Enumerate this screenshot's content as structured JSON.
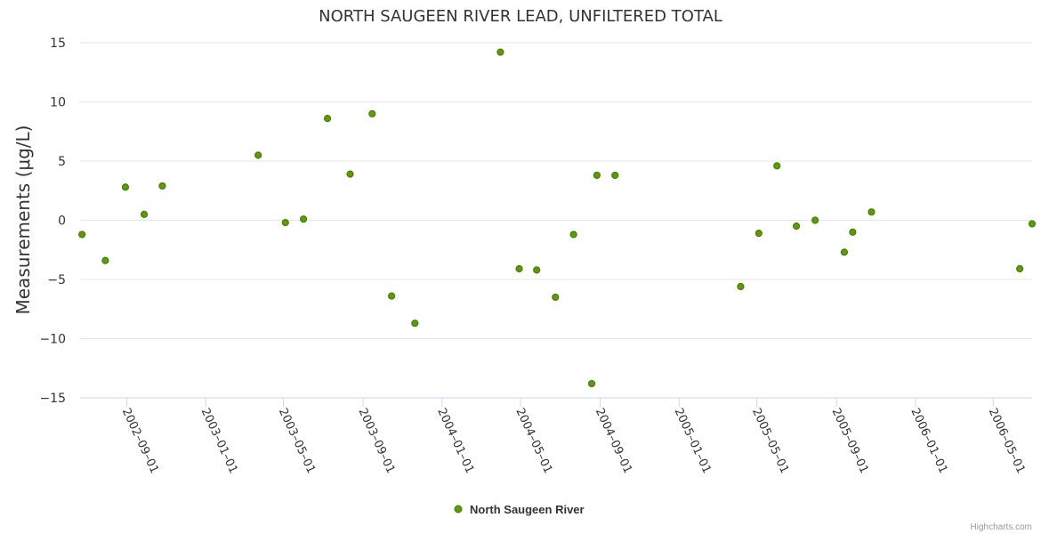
{
  "chart_data": {
    "type": "scatter",
    "title": "NORTH SAUGEEN RIVER LEAD, UNFILTERED TOTAL",
    "xlabel": "",
    "ylabel": "Measurements (μg/L)",
    "ylim": [
      -15,
      15
    ],
    "yticks": [
      15,
      10,
      5,
      0,
      -5,
      -10,
      -15
    ],
    "xlim": [
      "2002-06-21",
      "2006-06-30"
    ],
    "xticks": [
      "2002-09-01",
      "2003-01-01",
      "2003-05-01",
      "2003-09-01",
      "2004-01-01",
      "2004-05-01",
      "2004-09-01",
      "2005-01-01",
      "2005-05-01",
      "2005-09-01",
      "2006-01-01",
      "2006-05-01"
    ],
    "grid": true,
    "legend_position": "bottom",
    "series": [
      {
        "name": "North Saugeen River",
        "color": "#5a9e00",
        "points": [
          {
            "x": "2002-06-24",
            "y": -1.2
          },
          {
            "x": "2002-07-30",
            "y": -3.4
          },
          {
            "x": "2002-08-30",
            "y": 2.8
          },
          {
            "x": "2002-09-28",
            "y": 0.5
          },
          {
            "x": "2002-10-26",
            "y": 2.9
          },
          {
            "x": "2003-03-23",
            "y": 5.5
          },
          {
            "x": "2003-05-04",
            "y": -0.2
          },
          {
            "x": "2003-06-01",
            "y": 0.1
          },
          {
            "x": "2003-07-08",
            "y": 8.6
          },
          {
            "x": "2003-08-12",
            "y": 3.9
          },
          {
            "x": "2003-09-15",
            "y": 9.0
          },
          {
            "x": "2003-10-15",
            "y": -6.4
          },
          {
            "x": "2003-11-20",
            "y": -8.7
          },
          {
            "x": "2004-03-31",
            "y": 14.2
          },
          {
            "x": "2004-04-29",
            "y": -4.1
          },
          {
            "x": "2004-05-26",
            "y": -4.2
          },
          {
            "x": "2004-06-24",
            "y": -6.5
          },
          {
            "x": "2004-07-22",
            "y": -1.2
          },
          {
            "x": "2004-08-19",
            "y": -13.8
          },
          {
            "x": "2004-08-27",
            "y": 3.8
          },
          {
            "x": "2004-09-24",
            "y": 3.8
          },
          {
            "x": "2005-04-06",
            "y": -5.6
          },
          {
            "x": "2005-05-04",
            "y": -1.1
          },
          {
            "x": "2005-06-01",
            "y": 4.6
          },
          {
            "x": "2005-07-01",
            "y": -0.5
          },
          {
            "x": "2005-07-30",
            "y": 0.0
          },
          {
            "x": "2005-09-13",
            "y": -2.7
          },
          {
            "x": "2005-09-26",
            "y": -1.0
          },
          {
            "x": "2005-10-25",
            "y": 0.7
          },
          {
            "x": "2006-06-11",
            "y": -4.1
          },
          {
            "x": "2006-06-30",
            "y": -0.3
          }
        ]
      }
    ],
    "credits": "Highcharts.com"
  }
}
